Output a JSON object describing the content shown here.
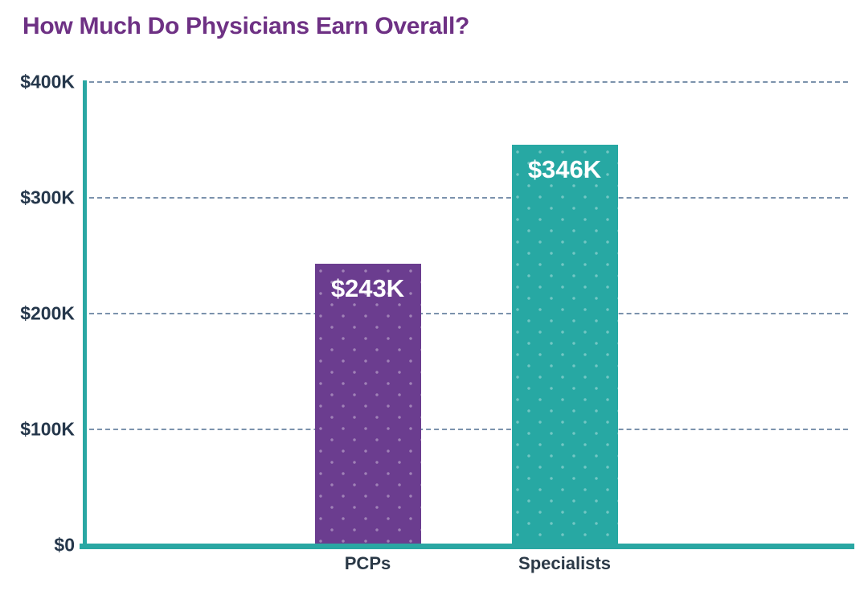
{
  "header": {
    "title": "How Much Do Physicians Earn Overall?"
  },
  "colors": {
    "title": "#6e3184",
    "axis": "#2aa7a3",
    "gridline": "#647f9e",
    "tick_label": "#25374b",
    "category_label": "#2b3947",
    "value_label": "#ffffff"
  },
  "chart_data": {
    "type": "bar",
    "title": "How Much Do Physicians Earn Overall?",
    "categories": [
      "PCPs",
      "Specialists"
    ],
    "values": [
      243,
      346
    ],
    "value_labels": [
      "$243K",
      "$346K"
    ],
    "bar_colors": [
      "#6b3d8f",
      "#27a8a3"
    ],
    "xlabel": "",
    "ylabel": "",
    "ylim": [
      0,
      400
    ],
    "yticks": [
      0,
      100,
      200,
      300,
      400
    ],
    "ytick_labels": [
      "$0",
      "$100K",
      "$200K",
      "$300K",
      "$400K"
    ],
    "grid": "horizontal-dashed",
    "legend": "none",
    "units": "USD thousands per year"
  }
}
